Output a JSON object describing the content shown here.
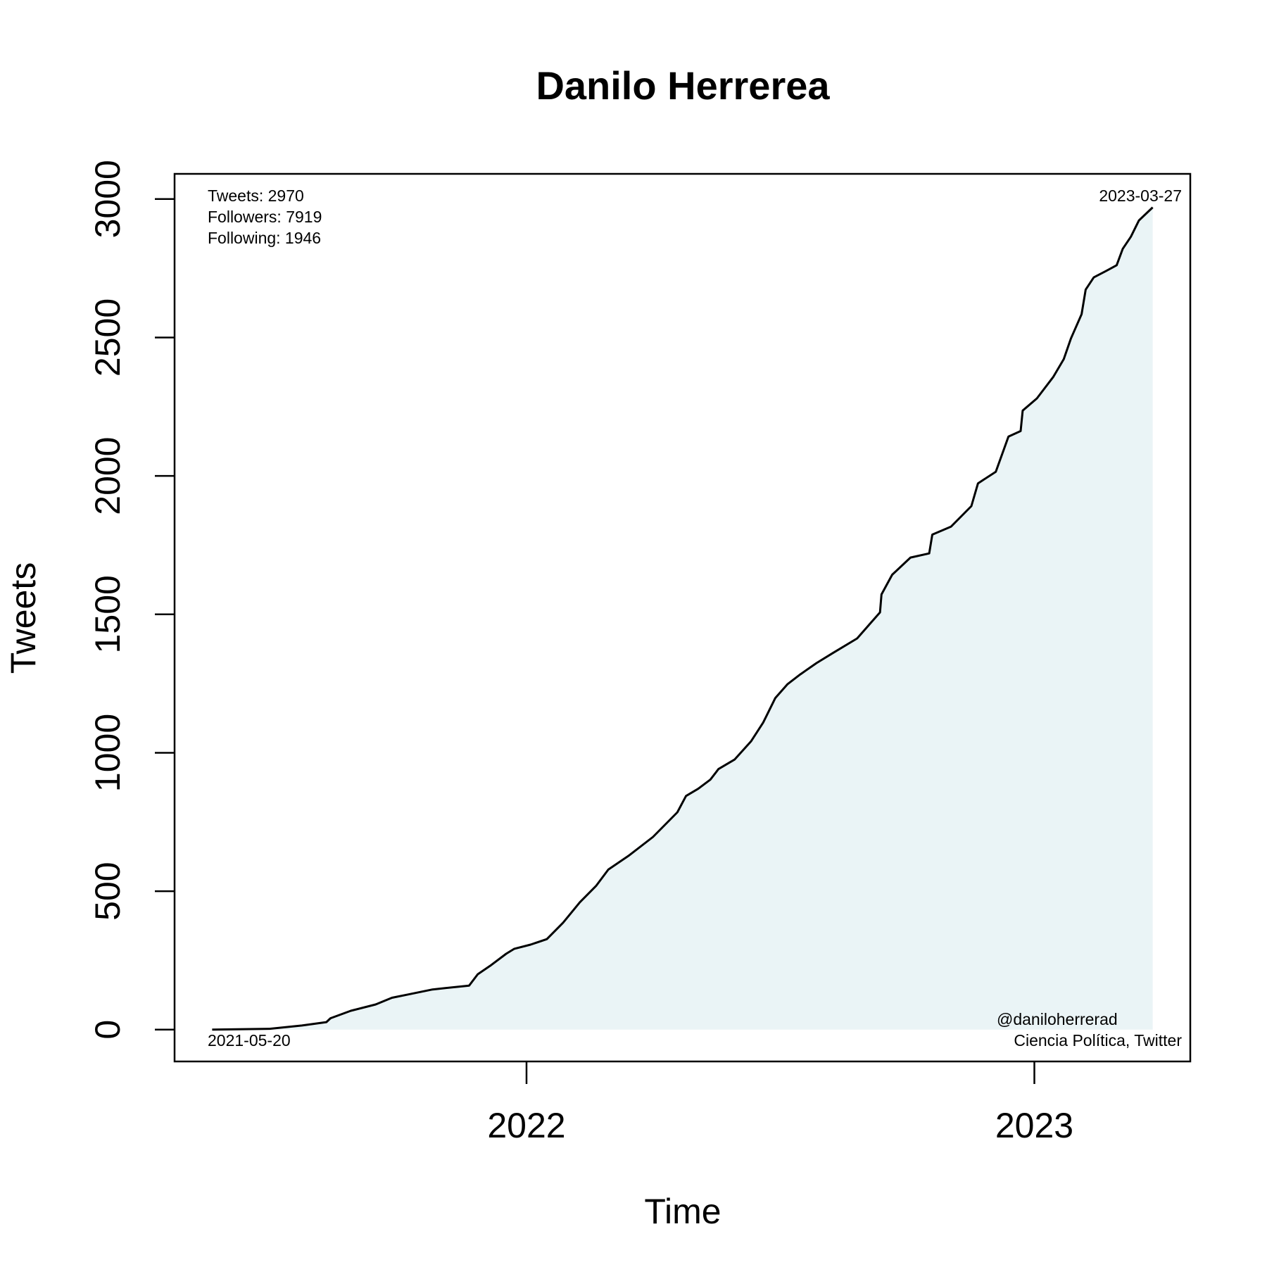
{
  "chart_data": {
    "type": "area",
    "title": "Danilo Herrerea",
    "xlabel": "Time",
    "ylabel": "Tweets",
    "x": [
      2021.381,
      2021.494,
      2021.558,
      2021.606,
      2021.614,
      2021.654,
      2021.703,
      2021.735,
      2021.767,
      2021.815,
      2021.887,
      2021.904,
      2021.928,
      2021.96,
      2021.976,
      2022.008,
      2022.04,
      2022.072,
      2022.105,
      2022.137,
      2022.161,
      2022.201,
      2022.249,
      2022.297,
      2022.314,
      2022.338,
      2022.362,
      2022.378,
      2022.41,
      2022.442,
      2022.466,
      2022.49,
      2022.514,
      2022.539,
      2022.571,
      2022.603,
      2022.651,
      2022.675,
      2022.696,
      2022.699,
      2022.72,
      2022.756,
      2022.793,
      2022.799,
      2022.836,
      2022.876,
      2022.889,
      2022.924,
      2022.949,
      2022.973,
      2022.977,
      2023.005,
      2023.037,
      2023.058,
      2023.072,
      2023.093,
      2023.101,
      2023.117,
      2023.141,
      2023.162,
      2023.174,
      2023.19,
      2023.206,
      2023.233
    ],
    "values": [
      0,
      3,
      15,
      27,
      41,
      68,
      91,
      115,
      127,
      145,
      159,
      200,
      230,
      274,
      292,
      307,
      327,
      386,
      460,
      519,
      578,
      628,
      696,
      785,
      844,
      870,
      903,
      941,
      976,
      1041,
      1109,
      1198,
      1248,
      1283,
      1324,
      1360,
      1413,
      1463,
      1507,
      1572,
      1643,
      1705,
      1720,
      1788,
      1817,
      1891,
      1973,
      2015,
      2142,
      2162,
      2236,
      2280,
      2357,
      2422,
      2496,
      2584,
      2673,
      2717,
      2740,
      2761,
      2820,
      2864,
      2923,
      2970
    ],
    "color": "#000000",
    "fill_color": "#eaf4f6",
    "xlim": [
      2021.307,
      2023.307
    ],
    "xticks": [
      2022,
      2023
    ],
    "ylim": [
      -115,
      3091
    ],
    "yticks": [
      0,
      500,
      1000,
      1500,
      2000,
      2500,
      3000
    ],
    "annotations": {
      "top_left": [
        "Tweets: 2970",
        "Followers: 7919",
        "Following: 1946"
      ],
      "top_right": "2023-03-27",
      "bottom_left": "2021-05-20",
      "bottom_right": [
        "@daniloherrerad",
        "Ciencia Política, Twitter"
      ]
    }
  }
}
